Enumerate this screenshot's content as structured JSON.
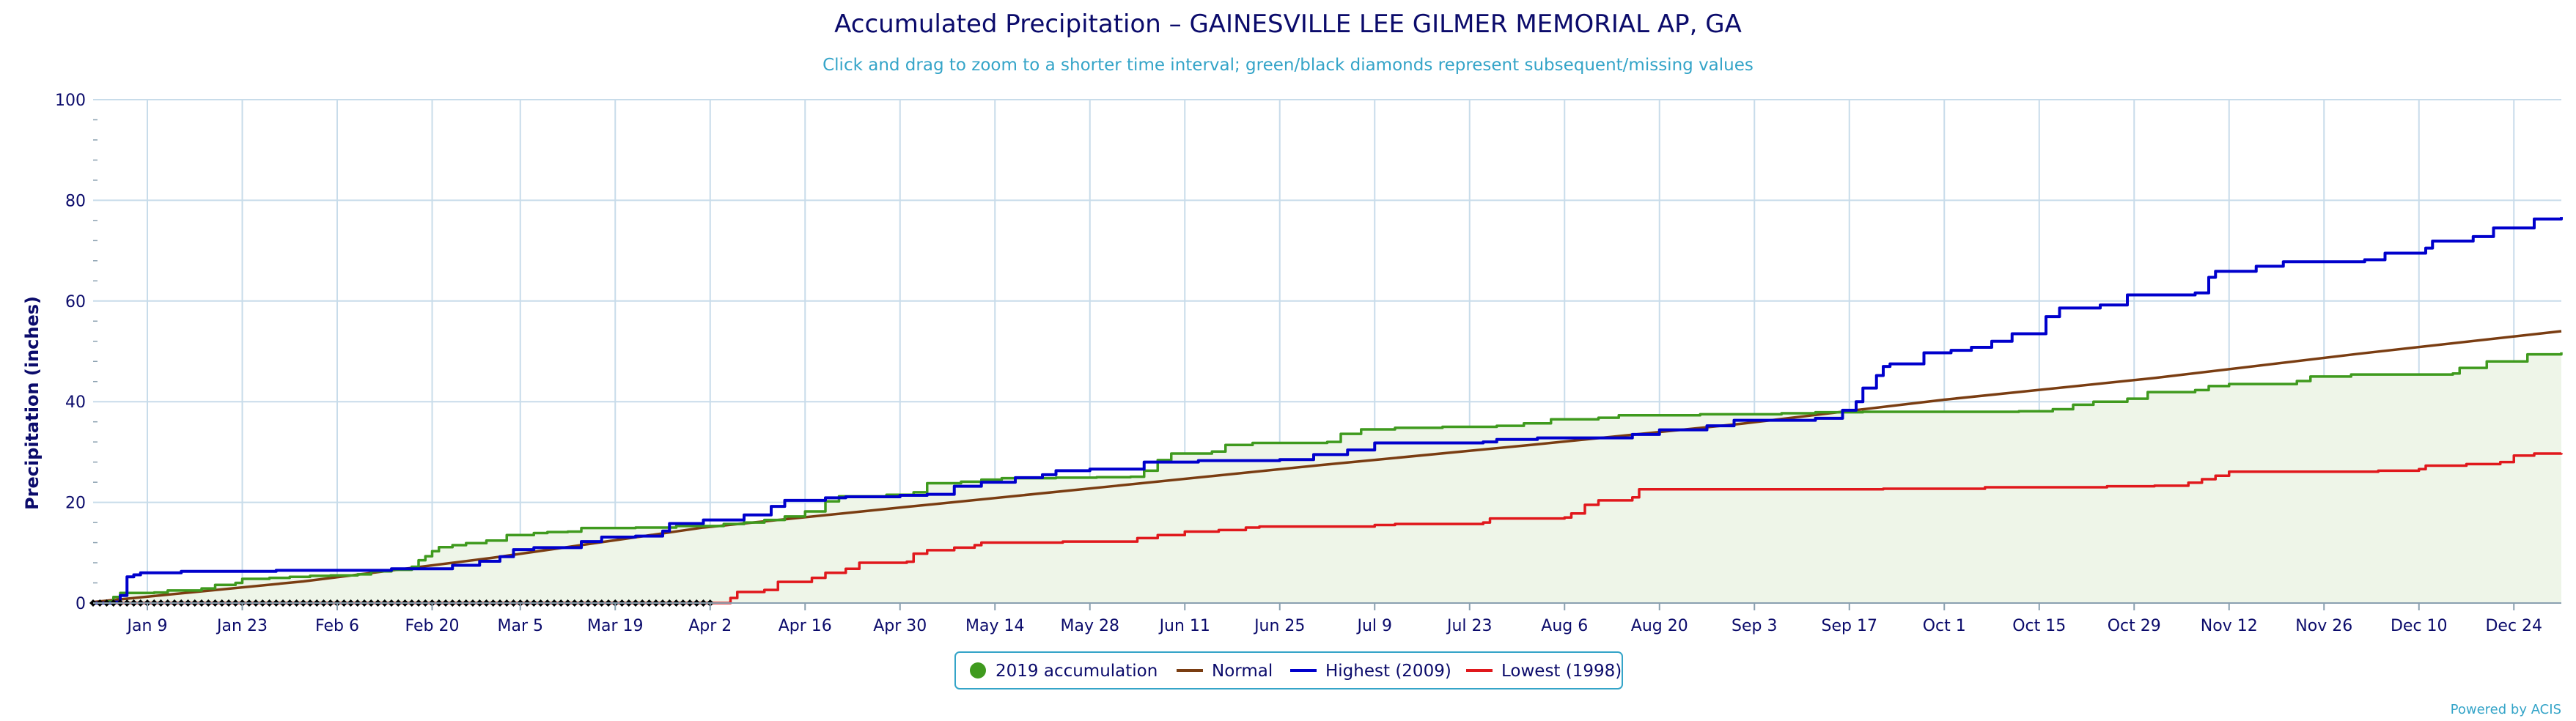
{
  "chart_data": {
    "type": "line",
    "title": "Accumulated Precipitation – GAINESVILLE LEE GILMER MEMORIAL AP, GA",
    "subtitle": "Click and drag to zoom to a shorter time interval; green/black diamonds represent subsequent/missing values",
    "ylabel": "Precipitation (inches)",
    "xlabel": "",
    "xlim": [
      1,
      365
    ],
    "ylim": [
      0,
      100
    ],
    "yticks": [
      0,
      20,
      40,
      60,
      80,
      100
    ],
    "grid": true,
    "legend_position": "bottom-center",
    "credits": "Powered by ACIS",
    "x_ticks": [
      {
        "day": 9,
        "label": "Jan 9"
      },
      {
        "day": 23,
        "label": "Jan 23"
      },
      {
        "day": 37,
        "label": "Feb 6"
      },
      {
        "day": 51,
        "label": "Feb 20"
      },
      {
        "day": 64,
        "label": "Mar 5"
      },
      {
        "day": 78,
        "label": "Mar 19"
      },
      {
        "day": 92,
        "label": "Apr 2"
      },
      {
        "day": 106,
        "label": "Apr 16"
      },
      {
        "day": 120,
        "label": "Apr 30"
      },
      {
        "day": 134,
        "label": "May 14"
      },
      {
        "day": 148,
        "label": "May 28"
      },
      {
        "day": 162,
        "label": "Jun 11"
      },
      {
        "day": 176,
        "label": "Jun 25"
      },
      {
        "day": 190,
        "label": "Jul 9"
      },
      {
        "day": 204,
        "label": "Jul 23"
      },
      {
        "day": 218,
        "label": "Aug 6"
      },
      {
        "day": 232,
        "label": "Aug 20"
      },
      {
        "day": 246,
        "label": "Sep 3"
      },
      {
        "day": 260,
        "label": "Sep 17"
      },
      {
        "day": 274,
        "label": "Oct 1"
      },
      {
        "day": 288,
        "label": "Oct 15"
      },
      {
        "day": 302,
        "label": "Oct 29"
      },
      {
        "day": 316,
        "label": "Nov 12"
      },
      {
        "day": 330,
        "label": "Nov 26"
      },
      {
        "day": 344,
        "label": "Dec 10"
      },
      {
        "day": 358,
        "label": "Dec 24"
      }
    ],
    "series": [
      {
        "name": "2019 accumulation",
        "color": "#3f9a1e",
        "fill": "#eef5e8",
        "step": true,
        "marker": "circle",
        "points": [
          [
            1,
            0
          ],
          [
            3,
            0.3
          ],
          [
            4,
            1.2
          ],
          [
            5,
            2
          ],
          [
            10,
            2.1
          ],
          [
            12,
            2.5
          ],
          [
            17,
            2.9
          ],
          [
            19,
            3.6
          ],
          [
            22,
            4
          ],
          [
            23,
            4.8
          ],
          [
            27,
            5
          ],
          [
            30,
            5.2
          ],
          [
            33,
            5.4
          ],
          [
            36,
            5.5
          ],
          [
            40,
            5.7
          ],
          [
            42,
            6.3
          ],
          [
            45,
            6.6
          ],
          [
            48,
            7.2
          ],
          [
            49,
            8.5
          ],
          [
            50,
            9.3
          ],
          [
            51,
            10.3
          ],
          [
            52,
            11.1
          ],
          [
            54,
            11.5
          ],
          [
            56,
            11.9
          ],
          [
            59,
            12.4
          ],
          [
            62,
            13.5
          ],
          [
            66,
            13.9
          ],
          [
            68,
            14.1
          ],
          [
            71,
            14.2
          ],
          [
            73,
            14.9
          ],
          [
            81,
            15
          ],
          [
            87,
            15.3
          ],
          [
            94,
            15.7
          ],
          [
            97,
            16
          ],
          [
            100,
            16.5
          ],
          [
            103,
            17.2
          ],
          [
            106,
            18.2
          ],
          [
            109,
            20.2
          ],
          [
            111,
            21.2
          ],
          [
            118,
            21.5
          ],
          [
            122,
            22
          ],
          [
            124,
            23.8
          ],
          [
            129,
            24.1
          ],
          [
            132,
            24.5
          ],
          [
            135,
            24.8
          ],
          [
            143,
            24.9
          ],
          [
            149,
            25
          ],
          [
            154,
            25.1
          ],
          [
            156,
            26.3
          ],
          [
            158,
            28.4
          ],
          [
            160,
            29.7
          ],
          [
            166,
            30.1
          ],
          [
            168,
            31.4
          ],
          [
            172,
            31.8
          ],
          [
            183,
            32
          ],
          [
            185,
            33.6
          ],
          [
            188,
            34.5
          ],
          [
            193,
            34.8
          ],
          [
            200,
            35
          ],
          [
            208,
            35.2
          ],
          [
            212,
            35.7
          ],
          [
            216,
            36.5
          ],
          [
            223,
            36.8
          ],
          [
            226,
            37.3
          ],
          [
            238,
            37.5
          ],
          [
            250,
            37.7
          ],
          [
            255,
            37.9
          ],
          [
            262,
            38
          ],
          [
            285,
            38.1
          ],
          [
            290,
            38.5
          ],
          [
            293,
            39.4
          ],
          [
            296,
            40
          ],
          [
            301,
            40.6
          ],
          [
            304,
            41.9
          ],
          [
            311,
            42.3
          ],
          [
            313,
            43.1
          ],
          [
            316,
            43.5
          ],
          [
            326,
            44.1
          ],
          [
            328,
            45
          ],
          [
            334,
            45.4
          ],
          [
            349,
            45.6
          ],
          [
            350,
            46.7
          ],
          [
            354,
            48
          ],
          [
            360,
            49.4
          ],
          [
            365,
            49.8
          ]
        ]
      },
      {
        "name": "Normal",
        "color": "#7a3d12",
        "fill": null,
        "step": false,
        "marker": "line",
        "points": [
          [
            1,
            0.2
          ],
          [
            32,
            4.3
          ],
          [
            60,
            9
          ],
          [
            91,
            15
          ],
          [
            121,
            19.1
          ],
          [
            152,
            23.3
          ],
          [
            182,
            27.4
          ],
          [
            213,
            31.4
          ],
          [
            244,
            35.6
          ],
          [
            274,
            40.4
          ],
          [
            305,
            44.7
          ],
          [
            335,
            49.5
          ],
          [
            365,
            54
          ]
        ]
      },
      {
        "name": "Highest (2009)",
        "color": "#0000cc",
        "fill": null,
        "step": true,
        "marker": "line",
        "points": [
          [
            1,
            0
          ],
          [
            4,
            0.2
          ],
          [
            5,
            1.5
          ],
          [
            6,
            5.2
          ],
          [
            7,
            5.6
          ],
          [
            8,
            6
          ],
          [
            14,
            6.3
          ],
          [
            28,
            6.5
          ],
          [
            45,
            6.8
          ],
          [
            54,
            7.5
          ],
          [
            58,
            8.3
          ],
          [
            61,
            9.2
          ],
          [
            63,
            10.6
          ],
          [
            66,
            11
          ],
          [
            73,
            12.2
          ],
          [
            76,
            13.1
          ],
          [
            81,
            13.3
          ],
          [
            85,
            14.3
          ],
          [
            86,
            15.8
          ],
          [
            91,
            16.5
          ],
          [
            97,
            17.5
          ],
          [
            101,
            19.2
          ],
          [
            103,
            20.4
          ],
          [
            109,
            20.9
          ],
          [
            112,
            21.1
          ],
          [
            120,
            21.4
          ],
          [
            124,
            21.6
          ],
          [
            128,
            23.2
          ],
          [
            132,
            24
          ],
          [
            137,
            24.9
          ],
          [
            141,
            25.5
          ],
          [
            143,
            26.3
          ],
          [
            148,
            26.6
          ],
          [
            156,
            28
          ],
          [
            164,
            28.3
          ],
          [
            176,
            28.5
          ],
          [
            181,
            29.5
          ],
          [
            186,
            30.4
          ],
          [
            190,
            31.8
          ],
          [
            206,
            32
          ],
          [
            208,
            32.5
          ],
          [
            214,
            32.8
          ],
          [
            228,
            33.5
          ],
          [
            232,
            34.4
          ],
          [
            239,
            35.2
          ],
          [
            243,
            36.3
          ],
          [
            255,
            36.7
          ],
          [
            259,
            38.3
          ],
          [
            261,
            40
          ],
          [
            262,
            42.7
          ],
          [
            264,
            45.2
          ],
          [
            265,
            47
          ],
          [
            266,
            47.5
          ],
          [
            271,
            49.7
          ],
          [
            275,
            50.2
          ],
          [
            278,
            50.8
          ],
          [
            281,
            52
          ],
          [
            284,
            53.5
          ],
          [
            289,
            56.9
          ],
          [
            291,
            58.6
          ],
          [
            297,
            59.2
          ],
          [
            301,
            61.2
          ],
          [
            311,
            61.6
          ],
          [
            313,
            64.7
          ],
          [
            314,
            65.9
          ],
          [
            320,
            66.9
          ],
          [
            324,
            67.8
          ],
          [
            336,
            68.2
          ],
          [
            339,
            69.5
          ],
          [
            345,
            70.5
          ],
          [
            346,
            71.9
          ],
          [
            352,
            72.8
          ],
          [
            355,
            74.5
          ],
          [
            361,
            76.3
          ],
          [
            365,
            76.7
          ]
        ]
      },
      {
        "name": "Lowest (1998)",
        "color": "#e0181c",
        "fill": null,
        "step": true,
        "marker": "line",
        "points": [
          [
            1,
            0
          ],
          [
            94,
            0
          ],
          [
            95,
            1
          ],
          [
            96,
            2.2
          ],
          [
            100,
            2.6
          ],
          [
            102,
            4.2
          ],
          [
            107,
            5
          ],
          [
            109,
            6
          ],
          [
            112,
            6.8
          ],
          [
            114,
            8
          ],
          [
            121,
            8.2
          ],
          [
            122,
            9.8
          ],
          [
            124,
            10.5
          ],
          [
            128,
            11
          ],
          [
            131,
            11.5
          ],
          [
            132,
            12
          ],
          [
            144,
            12.2
          ],
          [
            155,
            12.9
          ],
          [
            158,
            13.5
          ],
          [
            162,
            14.2
          ],
          [
            167,
            14.5
          ],
          [
            171,
            15
          ],
          [
            173,
            15.2
          ],
          [
            190,
            15.5
          ],
          [
            193,
            15.7
          ],
          [
            206,
            16
          ],
          [
            207,
            16.8
          ],
          [
            218,
            17
          ],
          [
            219,
            17.8
          ],
          [
            221,
            19.5
          ],
          [
            223,
            20.4
          ],
          [
            228,
            21
          ],
          [
            229,
            22.6
          ],
          [
            265,
            22.7
          ],
          [
            280,
            23
          ],
          [
            298,
            23.2
          ],
          [
            305,
            23.3
          ],
          [
            310,
            23.9
          ],
          [
            312,
            24.6
          ],
          [
            314,
            25.3
          ],
          [
            316,
            26.1
          ],
          [
            338,
            26.3
          ],
          [
            344,
            26.6
          ],
          [
            345,
            27.3
          ],
          [
            351,
            27.6
          ],
          [
            356,
            28
          ],
          [
            358,
            29.3
          ],
          [
            361,
            29.7
          ],
          [
            365,
            29.8
          ]
        ]
      }
    ],
    "missing_markers": {
      "color": "#000000",
      "from_day": 1,
      "to_day": 92,
      "every_days": 1,
      "value": 0
    }
  }
}
